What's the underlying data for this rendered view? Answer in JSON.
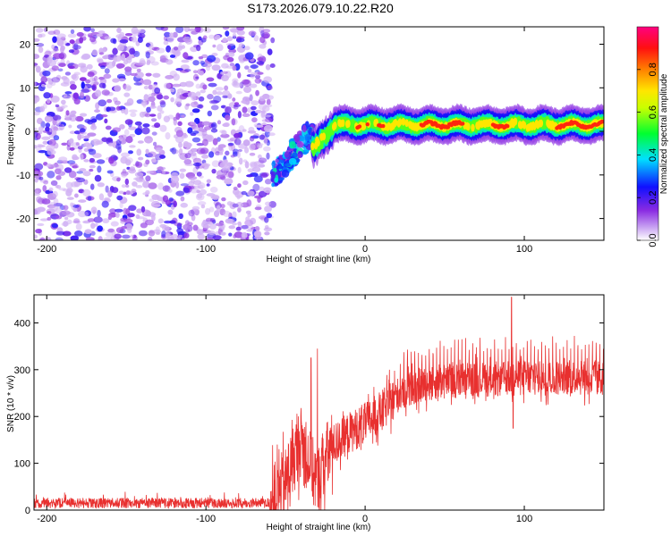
{
  "title": "S173.2026.079.10.22.R20",
  "chart_data": [
    {
      "type": "heatmap",
      "title": "S173.2026.079.10.22.R20",
      "xlabel": "Height of straight line (km)",
      "ylabel": "Frequency (Hz)",
      "xlim": [
        -208,
        150
      ],
      "ylim": [
        -25,
        24
      ],
      "xticks": [
        -200,
        -100,
        0,
        100
      ],
      "yticks": [
        -20,
        -10,
        0,
        10,
        20
      ],
      "colorbar": {
        "label": "Normalized spectral amplitude",
        "range": [
          0,
          1
        ],
        "ticks": [
          "0.0",
          "0.2",
          "0.4",
          "0.6",
          "0.8"
        ],
        "colormap": "rainbow (violet → blue → cyan → green → yellow → red → magenta)"
      },
      "features": {
        "noise_region_x": [
          -208,
          -58
        ],
        "noise_amplitude": [
          0.0,
          0.25
        ],
        "dip_x": [
          -58,
          -33
        ],
        "dip_freq_min": -15,
        "band_x": [
          -33,
          150
        ],
        "band_center_freq": 1.5,
        "band_peak_amplitude": 0.95
      }
    },
    {
      "type": "line",
      "xlabel": "Height of straight line (km)",
      "ylabel": "SNR (10 * v/v)",
      "xlim": [
        -208,
        150
      ],
      "ylim": [
        0,
        460
      ],
      "xticks": [
        -200,
        -100,
        0,
        100
      ],
      "yticks": [
        0,
        100,
        200,
        300,
        400
      ],
      "series": [
        {
          "name": "SNR",
          "color": "#e8302f",
          "trend_x": [
            -208,
            -60,
            -50,
            -45,
            -40,
            -35,
            -30,
            -25,
            -20,
            -10,
            0,
            10,
            20,
            30,
            40,
            60,
            80,
            100,
            120,
            150
          ],
          "trend_y": [
            14,
            14,
            60,
            110,
            150,
            100,
            60,
            110,
            140,
            165,
            185,
            210,
            245,
            262,
            272,
            278,
            280,
            282,
            283,
            283
          ],
          "spikes": [
            {
              "x": -30,
              "y": 345
            },
            {
              "x": -34,
              "y": 325
            },
            {
              "x": 92,
              "y": 455
            },
            {
              "x": 93,
              "y": 175
            }
          ]
        }
      ]
    }
  ]
}
